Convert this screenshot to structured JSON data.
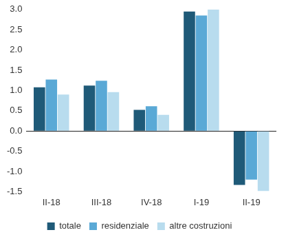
{
  "chart_data": {
    "type": "bar",
    "categories": [
      "II-18",
      "III-18",
      "IV-18",
      "I-19",
      "II-19"
    ],
    "series": [
      {
        "name": "totale",
        "color": "#1f5a78",
        "values": [
          1.08,
          1.12,
          0.52,
          2.95,
          -1.33
        ]
      },
      {
        "name": "residenziale",
        "color": "#5aa9d6",
        "values": [
          1.27,
          1.24,
          0.61,
          2.85,
          -1.2
        ]
      },
      {
        "name": "altre costruzioni",
        "color": "#b8dcee",
        "values": [
          0.9,
          0.96,
          0.4,
          3.0,
          -1.48
        ]
      }
    ],
    "ylim": [
      -1.5,
      3.0
    ],
    "yticks": [
      {
        "value": -1.5,
        "label": "-1.5"
      },
      {
        "value": -1,
        "label": "-1.0"
      },
      {
        "value": -0.5,
        "label": "-0.5"
      },
      {
        "value": 0,
        "label": "0.0"
      },
      {
        "value": 0.5,
        "label": "0.5"
      },
      {
        "value": 1,
        "label": "1.0"
      },
      {
        "value": 1.5,
        "label": "1.5"
      },
      {
        "value": 2,
        "label": "2.0"
      },
      {
        "value": 2.5,
        "label": "2.5"
      },
      {
        "value": 3,
        "label": "3.0"
      }
    ],
    "grid": false,
    "legend": "bottom"
  }
}
